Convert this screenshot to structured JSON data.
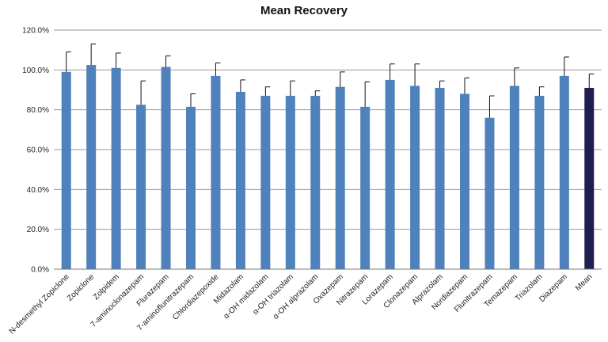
{
  "chart_data": {
    "type": "bar",
    "title": "Mean Recovery",
    "xlabel": "",
    "ylabel": "",
    "ylim": [
      0,
      120
    ],
    "yticks": [
      0,
      20,
      40,
      60,
      80,
      100,
      120
    ],
    "ytick_labels": [
      "0.0%",
      "20.0%",
      "40.0%",
      "60.0%",
      "80.0%",
      "100.0%",
      "120.0%"
    ],
    "grid": true,
    "legend": "none",
    "bar_color": "#4f81bd",
    "highlight_color": "#1f1f4f",
    "highlight_category": "Mean",
    "categories": [
      "N-desmethyl Zopiclone",
      "Zopiclone",
      "Zolpidem",
      "7-aminoclonazepam",
      "Flurazepam",
      "7-aminoflunitrazepam",
      "Chlordiazepoxide",
      "Midazolam",
      "α-OH midazolam",
      "α-OH triazolam",
      "α-OH alprazolam",
      "Oxazepam",
      "Nitrazepam",
      "Lorazepam",
      "Clonazepam",
      "Alprazolam",
      "Nordiazepam",
      "Flunitrazepam",
      "Temazepam",
      "Triazolam",
      "Diazepam",
      "Mean"
    ],
    "values": [
      99.0,
      102.5,
      101.0,
      82.5,
      101.5,
      81.5,
      97.0,
      89.0,
      87.0,
      87.0,
      87.0,
      91.5,
      81.5,
      95.0,
      92.0,
      91.0,
      88.0,
      76.0,
      92.0,
      87.0,
      97.0,
      91.0
    ],
    "error": [
      10.0,
      10.5,
      7.5,
      12.0,
      5.5,
      6.5,
      6.5,
      6.0,
      4.5,
      7.5,
      2.5,
      7.5,
      12.5,
      8.0,
      11.0,
      3.5,
      8.0,
      11.0,
      9.0,
      4.5,
      9.5,
      7.0
    ]
  }
}
